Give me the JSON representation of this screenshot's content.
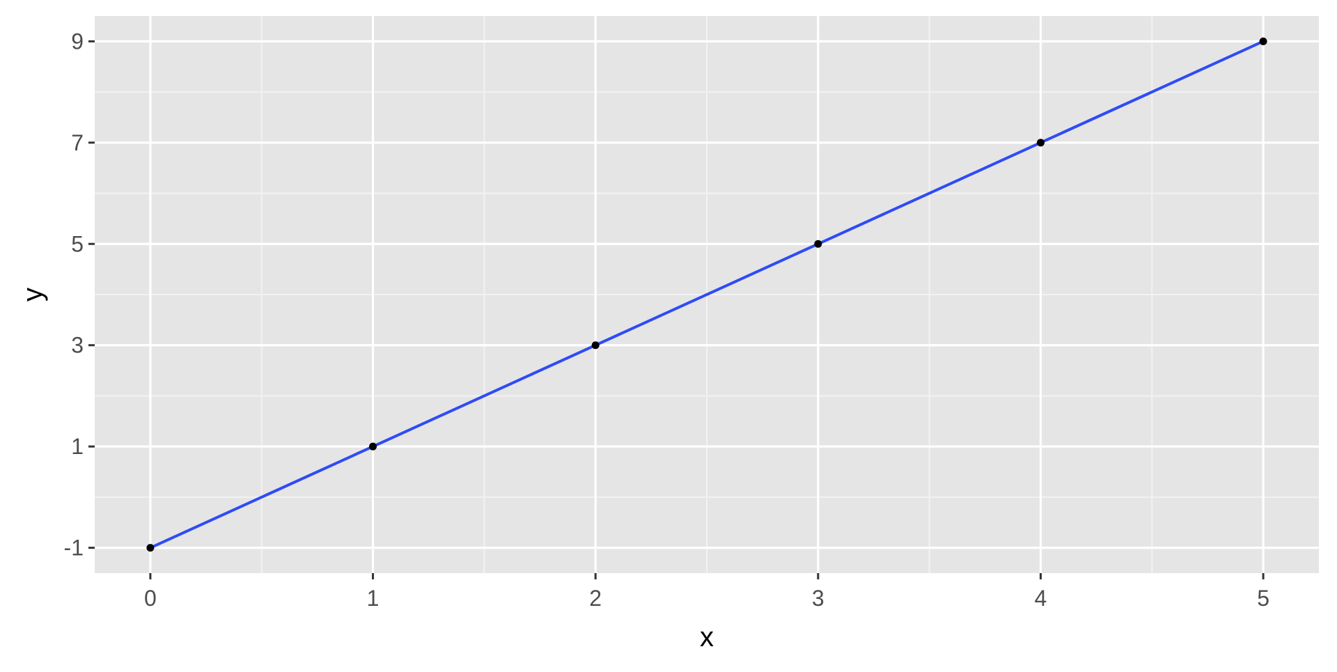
{
  "chart_data": {
    "type": "line",
    "title": "",
    "xlabel": "x",
    "ylabel": "y",
    "xlim": [
      -0.25,
      5.25
    ],
    "ylim": [
      -1.5,
      9.5
    ],
    "x_ticks": [
      0,
      1,
      2,
      3,
      4,
      5
    ],
    "x_tick_labels": [
      "0",
      "1",
      "2",
      "3",
      "4",
      "5"
    ],
    "y_ticks": [
      -1,
      1,
      3,
      5,
      7,
      9
    ],
    "y_tick_labels": [
      "-1",
      "1",
      "3",
      "5",
      "7",
      "9"
    ],
    "grid": true,
    "legend": "none",
    "series": [
      {
        "x": [
          0,
          1,
          2,
          3,
          4,
          5
        ],
        "y": [
          -1,
          1,
          3,
          5,
          7,
          9
        ],
        "line_color": "#2f4bf5",
        "point_color": "#000000"
      }
    ]
  },
  "colors": {
    "panel_background": "#e5e5e5",
    "grid_major": "#ffffff",
    "grid_minor": "#f2f2f2",
    "tick_mark": "#333333",
    "tick_label": "#4d4d4d"
  }
}
